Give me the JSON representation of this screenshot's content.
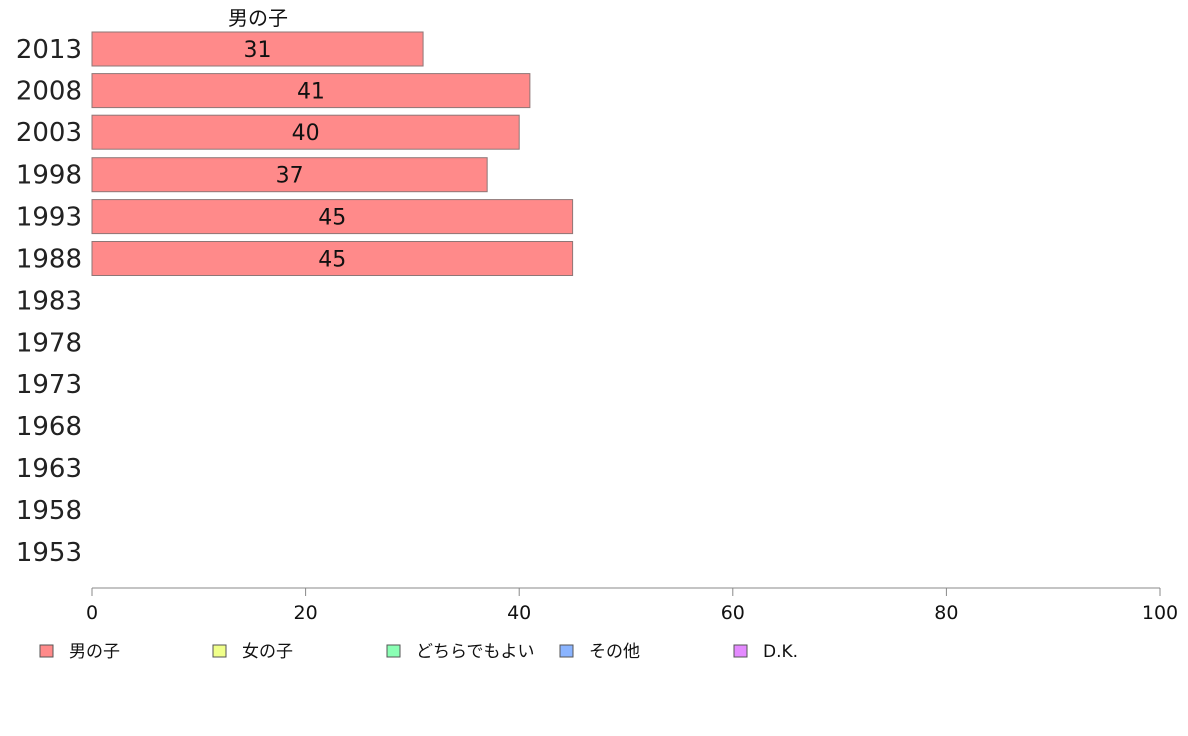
{
  "chart_data": {
    "type": "bar",
    "orientation": "horizontal",
    "stacked": true,
    "categories": [
      "2013",
      "2008",
      "2003",
      "1998",
      "1993",
      "1988",
      "1983",
      "1978",
      "1973",
      "1968",
      "1963",
      "1958",
      "1953"
    ],
    "series": [
      {
        "name": "男の子",
        "color": "#ff8a8a",
        "values": [
          31,
          41,
          40,
          37,
          45,
          45,
          null,
          null,
          null,
          null,
          null,
          null,
          null
        ]
      }
    ],
    "series_title": "男の子",
    "xlim": [
      0,
      100
    ],
    "xticks": [
      0,
      20,
      40,
      60,
      80,
      100
    ],
    "grid": false,
    "legend": {
      "placement": "bottom",
      "entries": [
        {
          "label": "男の子",
          "color": "#ff8a8a"
        },
        {
          "label": "女の子",
          "color": "#f0ff8a"
        },
        {
          "label": "どちらでもよい",
          "color": "#8affb4"
        },
        {
          "label": "その他",
          "color": "#8ab4ff"
        },
        {
          "label": "D.K.",
          "color": "#e48aff"
        }
      ]
    }
  }
}
